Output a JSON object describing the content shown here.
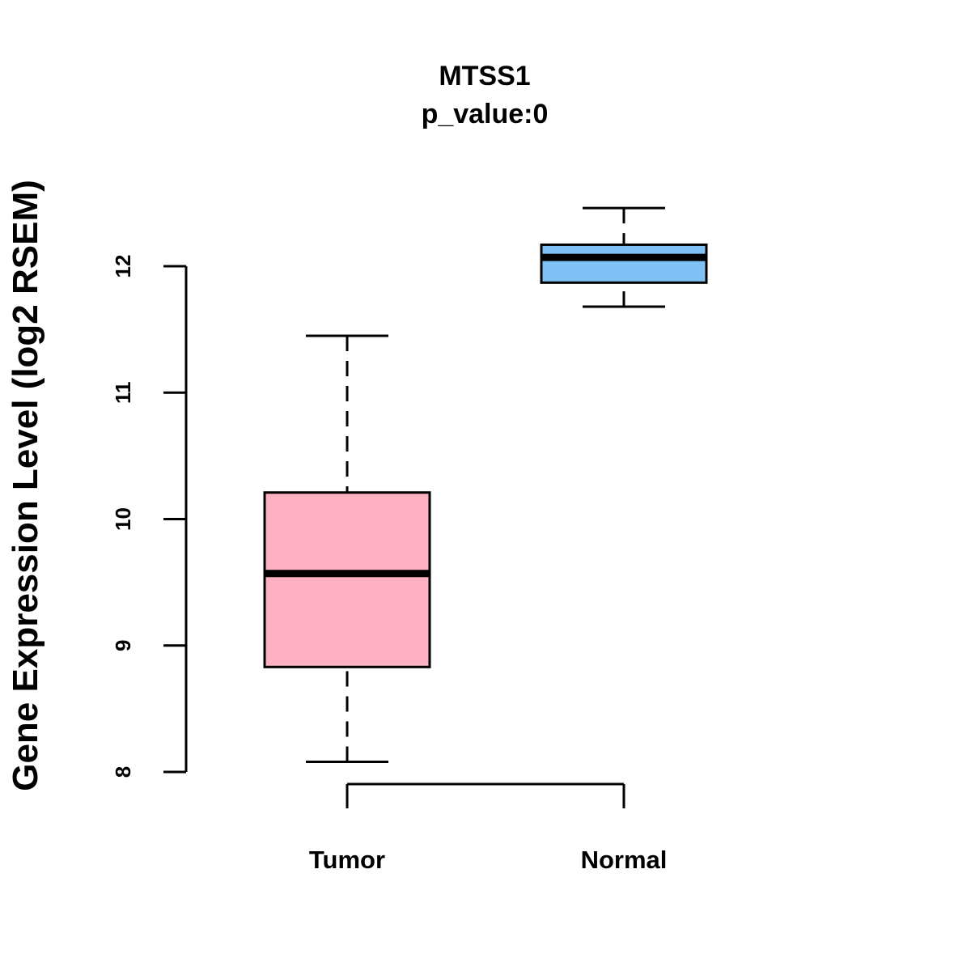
{
  "chart_data": {
    "type": "boxplot",
    "title_lines": [
      "MTSS1",
      "p_value:0"
    ],
    "ylabel": "Gene Expression Level (log2 RSEM)",
    "xlabel": "",
    "ylim": [
      8,
      12
    ],
    "y_ticks": [
      8,
      9,
      10,
      11,
      12
    ],
    "y_tick_labels": [
      "8",
      "9",
      "10",
      "11",
      "12"
    ],
    "categories": [
      "Tumor",
      "Normal"
    ],
    "series": [
      {
        "name": "Tumor",
        "color": "#fcb0c1",
        "whisker_low": 8.08,
        "q1": 8.83,
        "median": 9.57,
        "q3": 10.21,
        "whisker_high": 11.45
      },
      {
        "name": "Normal",
        "color": "#7dc1f5",
        "whisker_low": 11.68,
        "q1": 11.87,
        "median": 12.07,
        "q3": 12.17,
        "whisker_high": 12.46
      }
    ]
  }
}
